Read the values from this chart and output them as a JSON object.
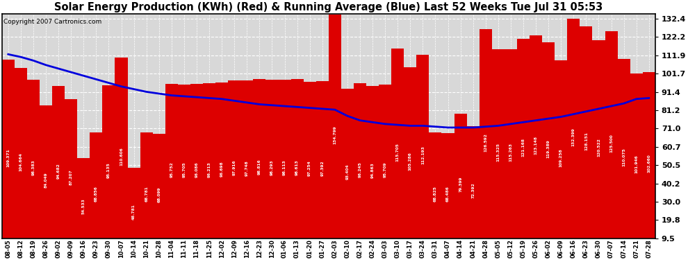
{
  "title": "Solar Energy Production (KWh) (Red) & Running Average (Blue) Last 52 Weeks Tue Jul 31 05:53",
  "copyright": "Copyright 2007 Cartronics.com",
  "bar_color": "#dd0000",
  "line_color": "#0000dd",
  "background_color": "#ffffff",
  "plot_bg_color": "#d8d8d8",
  "grid_color": "#ffffff",
  "yticks": [
    9.5,
    19.8,
    30.0,
    40.2,
    50.5,
    60.7,
    71.0,
    81.2,
    91.4,
    101.7,
    111.9,
    122.2,
    132.4
  ],
  "xlabels": [
    "08-05",
    "08-12",
    "08-19",
    "08-26",
    "09-02",
    "09-09",
    "09-16",
    "09-23",
    "09-30",
    "10-07",
    "10-14",
    "10-21",
    "10-28",
    "11-04",
    "11-11",
    "11-18",
    "11-25",
    "12-02",
    "12-09",
    "12-16",
    "12-23",
    "12-30",
    "01-06",
    "01-13",
    "01-20",
    "01-27",
    "02-03",
    "02-10",
    "02-17",
    "02-24",
    "03-03",
    "03-10",
    "03-17",
    "03-24",
    "03-31",
    "04-07",
    "04-14",
    "04-21",
    "04-28",
    "05-05",
    "05-12",
    "05-19",
    "05-26",
    "06-02",
    "06-09",
    "06-16",
    "06-23",
    "06-30",
    "07-07",
    "07-14",
    "07-21",
    "07-28"
  ],
  "bar_values": [
    109.371,
    104.664,
    98.383,
    84.049,
    94.682,
    87.207,
    54.533,
    68.856,
    95.135,
    110.606,
    48.781,
    68.781,
    68.099,
    95.752,
    95.705,
    96.086,
    96.213,
    96.698,
    97.916,
    97.748,
    98.816,
    98.293,
    98.113,
    98.613,
    97.254,
    97.392,
    134.799,
    93.404,
    96.245,
    94.863,
    95.709,
    115.705,
    105.286,
    112.193,
    68.825,
    68.486,
    79.399,
    72.392,
    126.592,
    115.325,
    115.263,
    121.168,
    123.148,
    119.389,
    109.258,
    132.399,
    128.151,
    120.522,
    125.5,
    110.075,
    101.946,
    102.66
  ],
  "running_avg": [
    112.5,
    111.0,
    109.0,
    106.5,
    104.5,
    102.5,
    100.5,
    98.5,
    96.5,
    94.5,
    93.0,
    91.5,
    90.5,
    89.5,
    89.0,
    88.5,
    88.0,
    87.5,
    86.5,
    85.5,
    84.5,
    84.0,
    83.5,
    83.0,
    82.5,
    82.0,
    81.5,
    78.0,
    75.5,
    74.5,
    73.5,
    73.0,
    72.5,
    72.5,
    72.0,
    71.5,
    71.5,
    71.5,
    72.0,
    72.5,
    73.5,
    74.5,
    75.5,
    76.5,
    77.5,
    79.0,
    80.5,
    82.0,
    83.5,
    85.0,
    87.5,
    88.0
  ]
}
